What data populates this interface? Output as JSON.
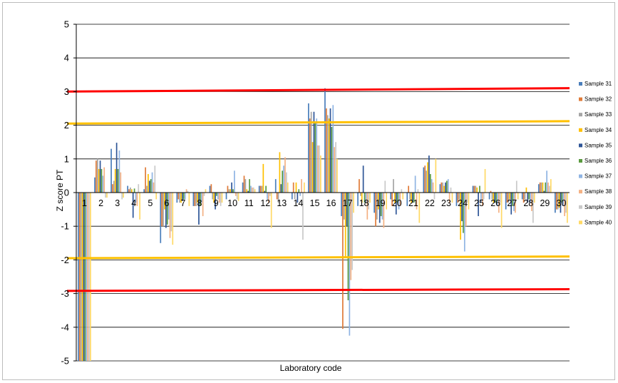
{
  "chart_data": {
    "type": "bar",
    "xlabel": "Laboratory code",
    "ylabel": "Z score  PT",
    "ylim": [
      -5,
      5
    ],
    "yticks": [
      -5,
      -4,
      -3,
      -2,
      -1,
      0,
      1,
      2,
      3,
      4,
      5
    ],
    "ytick_labels": [
      "-5",
      "-4",
      "-3",
      "-2",
      "-1",
      "0",
      "1",
      "2",
      "3",
      "4",
      "5"
    ],
    "grid": "horizontal",
    "legend_position": "right",
    "categories": [
      "1",
      "2",
      "3",
      "4",
      "5",
      "6",
      "7",
      "8",
      "9",
      "10",
      "11",
      "12",
      "13",
      "14",
      "15",
      "16",
      "17",
      "18",
      "19",
      "20",
      "21",
      "22",
      "23",
      "24",
      "25",
      "26",
      "27",
      "28",
      "29",
      "30"
    ],
    "colors": [
      "#4a7ebb",
      "#e07b39",
      "#a5a5a5",
      "#ffc000",
      "#2e5597",
      "#5a9a3f",
      "#8fb4e3",
      "#f4b183",
      "#c9c9c9",
      "#ffd966"
    ],
    "series": [
      {
        "name": "Sample 31",
        "values": [
          -5,
          0.45,
          1.3,
          0.2,
          0.1,
          -1.5,
          -0.3,
          -0.4,
          0.2,
          -0.2,
          0.3,
          0.2,
          0.4,
          -0.2,
          2.65,
          3.1,
          -0.7,
          -0.4,
          -0.6,
          -0.2,
          -0.4,
          0.75,
          0.25,
          -0.4,
          0.2,
          -0.2,
          -0.5,
          -0.2,
          0.25,
          -0.6
        ]
      },
      {
        "name": "Sample 32",
        "values": [
          -5,
          0.95,
          0.25,
          0.1,
          0.75,
          -1.0,
          -0.2,
          -0.4,
          0.25,
          0.2,
          0.5,
          0.2,
          -0.2,
          0.3,
          2.2,
          2.5,
          -4.05,
          0.4,
          -1.0,
          -0.4,
          0.2,
          0.8,
          0.3,
          -0.3,
          0.2,
          0.05,
          -0.3,
          -0.3,
          0.3,
          -0.5
        ]
      },
      {
        "name": "Sample 33",
        "values": [
          -5,
          1.0,
          0.35,
          0.15,
          0.2,
          -1.0,
          -0.3,
          -0.4,
          -0.2,
          0.1,
          0.4,
          0.2,
          -0.3,
          -0.2,
          2.4,
          2.3,
          -0.8,
          -0.1,
          -0.8,
          0.4,
          -0.2,
          0.65,
          0.3,
          -0.2,
          0.2,
          -0.2,
          -0.3,
          -0.2,
          0.3,
          -0.5
        ]
      },
      {
        "name": "Sample 34",
        "values": [
          -5,
          0.7,
          0.7,
          0.1,
          0.55,
          -0.5,
          -0.3,
          -0.3,
          -0.3,
          0.1,
          0.1,
          0.85,
          1.2,
          0.3,
          1.5,
          2.2,
          -1.95,
          -0.3,
          -0.5,
          -0.3,
          -0.3,
          0.9,
          0.2,
          -1.4,
          0.15,
          -0.3,
          -0.2,
          0.15,
          0.3,
          -0.45
        ]
      },
      {
        "name": "Sample 35",
        "values": [
          -5,
          0.95,
          1.48,
          -0.75,
          0.35,
          -1.05,
          -0.25,
          -0.95,
          -0.5,
          0.3,
          0.05,
          0.05,
          0.25,
          -0.3,
          2.4,
          2.5,
          -1.0,
          0.8,
          -0.9,
          -0.65,
          -0.3,
          1.1,
          0.3,
          -0.85,
          -0.7,
          -0.3,
          -0.65,
          -0.3,
          0.05,
          -0.6
        ]
      },
      {
        "name": "Sample 36",
        "values": [
          -5,
          0.7,
          0.7,
          0.12,
          0.4,
          -0.95,
          -0.2,
          -0.4,
          -0.1,
          0.1,
          0.4,
          0.2,
          0.65,
          0.1,
          2.1,
          1.95,
          -3.2,
          -0.3,
          -0.7,
          -0.3,
          -0.3,
          0.55,
          0.35,
          -1.2,
          0.2,
          -0.3,
          -0.4,
          -0.2,
          0.3,
          -0.3
        ]
      },
      {
        "name": "Sample 37",
        "values": [
          -5,
          0.5,
          1.25,
          -0.3,
          0.6,
          -0.8,
          -0.2,
          -0.3,
          -0.2,
          0.65,
          0.2,
          -0.2,
          0.8,
          -0.1,
          2.2,
          2.6,
          -4.25,
          -0.3,
          -0.8,
          -0.5,
          0.5,
          0.4,
          0.4,
          -1.75,
          -0.3,
          -0.4,
          -0.55,
          -0.3,
          0.65,
          -0.4
        ]
      },
      {
        "name": "Sample 38",
        "values": [
          -5,
          0.75,
          0.6,
          -0.4,
          0.3,
          -1.35,
          0.1,
          -0.7,
          -0.3,
          -0.1,
          0.15,
          -0.3,
          1.05,
          0.4,
          1.4,
          1.35,
          -2.6,
          -0.8,
          -1.05,
          -0.4,
          -0.5,
          0.3,
          -0.3,
          -1.0,
          -0.4,
          -0.6,
          -0.6,
          -0.55,
          0.3,
          -0.7
        ]
      },
      {
        "name": "Sample 39",
        "values": [
          -5,
          -0.15,
          -0.2,
          0.25,
          0.8,
          -1.15,
          0.05,
          -0.1,
          -0.4,
          -0.2,
          0.15,
          -0.1,
          0.6,
          -1.4,
          1.4,
          1.5,
          -2.3,
          -0.5,
          0.35,
          0.1,
          0.1,
          -0.2,
          0.15,
          -0.3,
          -0.2,
          -0.3,
          0.35,
          -0.9,
          0.2,
          -0.6
        ]
      },
      {
        "name": "Sample 40",
        "values": [
          -5,
          -0.15,
          -0.15,
          -0.8,
          -0.2,
          -1.55,
          -0.4,
          0.1,
          -0.3,
          -0.25,
          0.1,
          -1.05,
          0.3,
          0.3,
          1.1,
          1.0,
          -0.6,
          -0.3,
          -0.5,
          -0.2,
          -0.9,
          1.0,
          -0.3,
          -0.5,
          0.7,
          -1.05,
          -0.2,
          -0.3,
          0.4,
          -0.9
        ]
      }
    ],
    "reference_lines": [
      {
        "from": 3.0,
        "to": 3.1,
        "color": "#ff0000"
      },
      {
        "from": 2.05,
        "to": 2.12,
        "color": "#ffc000"
      },
      {
        "from": -1.95,
        "to": -1.9,
        "color": "#ffc000"
      },
      {
        "from": -2.92,
        "to": -2.87,
        "color": "#ff0000"
      }
    ]
  }
}
